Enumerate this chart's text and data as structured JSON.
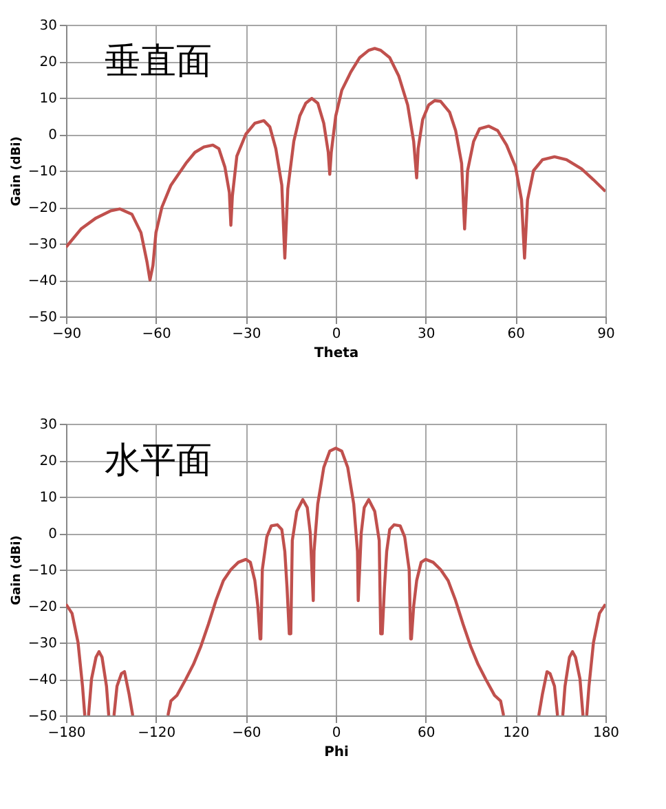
{
  "chart_data": [
    {
      "type": "line",
      "title": "垂直面",
      "xlabel": "Theta",
      "ylabel": "Gain (dBi)",
      "grid": true,
      "xlim": [
        -90,
        90
      ],
      "ylim": [
        -50,
        30
      ],
      "xticks": [
        -90,
        -60,
        -30,
        0,
        30,
        60,
        90
      ],
      "yticks": [
        -50,
        -40,
        -30,
        -20,
        -10,
        0,
        10,
        20,
        30
      ],
      "x": [
        -90,
        -85,
        -80,
        -75,
        -72,
        -68,
        -65,
        -63,
        -62,
        -61,
        -60,
        -58,
        -55,
        -50,
        -47,
        -44,
        -41,
        -39,
        -37,
        -35.5,
        -35,
        -34.5,
        -33,
        -30,
        -27,
        -24,
        -22,
        -20,
        -18,
        -17,
        -16,
        -14,
        -12,
        -10,
        -8,
        -6,
        -4,
        -2.5,
        -2,
        -1.5,
        0,
        2,
        5,
        8,
        11,
        13,
        15,
        18,
        21,
        24,
        26,
        27,
        27.5,
        29,
        31,
        33,
        35,
        38,
        40,
        42,
        43,
        44,
        46,
        48,
        51,
        54,
        57,
        60,
        62,
        63,
        64,
        66,
        69,
        73,
        77,
        82,
        86,
        90
      ],
      "series": [
        {
          "color": "#c0504d",
          "values": [
            -31,
            -26,
            -23,
            -21,
            -20.5,
            -22,
            -27,
            -35,
            -40,
            -36,
            -27,
            -20,
            -14,
            -8,
            -5,
            -3.5,
            -3,
            -4,
            -9,
            -16,
            -25,
            -17,
            -6,
            0,
            3,
            3.7,
            2,
            -4,
            -14,
            -34,
            -15,
            -2,
            5,
            8.5,
            9.8,
            8.5,
            3,
            -5,
            -11,
            -5,
            5,
            12,
            17,
            21,
            23,
            23.5,
            23,
            21,
            16,
            8,
            -2,
            -12,
            -4,
            4,
            8,
            9.2,
            9,
            6,
            1,
            -8,
            -26,
            -10,
            -2,
            1.5,
            2.2,
            1,
            -3,
            -9,
            -18,
            -34,
            -18,
            -10,
            -7,
            -6.2,
            -7,
            -9.5,
            -12.5,
            -15.7
          ]
        }
      ]
    },
    {
      "type": "line",
      "title": "水平面",
      "xlabel": "Phi",
      "ylabel": "Gain (dBi)",
      "grid": true,
      "xlim": [
        -180,
        180
      ],
      "ylim": [
        -50,
        30
      ],
      "xticks": [
        -180,
        -120,
        -60,
        0,
        60,
        120,
        180
      ],
      "yticks": [
        -50,
        -40,
        -30,
        -20,
        -10,
        0,
        10,
        20,
        30
      ],
      "x": [
        -180,
        -176,
        -172,
        -169,
        -167.5,
        -166,
        -165,
        -163,
        -160,
        -158,
        -156,
        -153,
        -151.5,
        -150,
        -148,
        -146,
        -143,
        -141,
        -138,
        -135.5,
        -130,
        -112,
        -110,
        -106,
        -100,
        -95,
        -90,
        -85,
        -80,
        -75,
        -70,
        -65,
        -60,
        -57,
        -54,
        -52,
        -50.5,
        -50,
        -49,
        -46,
        -43,
        -39,
        -36,
        -34,
        -32.5,
        -31,
        -30,
        -29,
        -26,
        -22,
        -19,
        -17,
        -15,
        -14.5,
        -12,
        -8,
        -4,
        0,
        4,
        8,
        12,
        14.5,
        15,
        17,
        19,
        22,
        26,
        29,
        30,
        31,
        32.5,
        34,
        36,
        39,
        43,
        46,
        49,
        50,
        50.5,
        52,
        54,
        57,
        60,
        65,
        70,
        75,
        80,
        85,
        90,
        95,
        100,
        106,
        110,
        112,
        130,
        135.5,
        138,
        141,
        143,
        146,
        148,
        150,
        151.5,
        153,
        156,
        158,
        160,
        163,
        165,
        166,
        167.5,
        169,
        172,
        176,
        180
      ],
      "series": [
        {
          "color": "#c0504d",
          "values": [
            -19.5,
            -22,
            -30,
            -42,
            -50,
            null,
            -50,
            -40,
            -34,
            -32.5,
            -34,
            -42,
            -50,
            null,
            -50,
            -42,
            -38.5,
            -38,
            -44,
            -50,
            null,
            -50,
            -46,
            -44.5,
            -40,
            -36,
            -31,
            -25,
            -18.5,
            -13,
            -10,
            -8,
            -7.2,
            -8,
            -13,
            -20,
            -29,
            -29,
            -10,
            -1,
            2,
            2.3,
            1,
            -5,
            -15,
            -27.6,
            -27.6,
            -2,
            6,
            9.2,
            7,
            0,
            -18.5,
            -5,
            8,
            18,
            22.5,
            23.3,
            22.5,
            18,
            8,
            -5,
            -18.5,
            0,
            7,
            9.2,
            6,
            -2,
            -27.6,
            -27.6,
            -15,
            -5,
            1,
            2.3,
            2,
            -1,
            -10,
            -29,
            -29,
            -20,
            -13,
            -8,
            -7.2,
            -8,
            -10,
            -13,
            -18.5,
            -25,
            -31,
            -36,
            -40,
            -44.5,
            -46,
            -50,
            null,
            -50,
            -44,
            -38,
            -38.5,
            -42,
            -50,
            null,
            -50,
            -42,
            -34,
            -32.5,
            -34,
            -40,
            -50,
            null,
            -50,
            -42,
            -30,
            -22,
            -19.5
          ]
        }
      ]
    }
  ]
}
